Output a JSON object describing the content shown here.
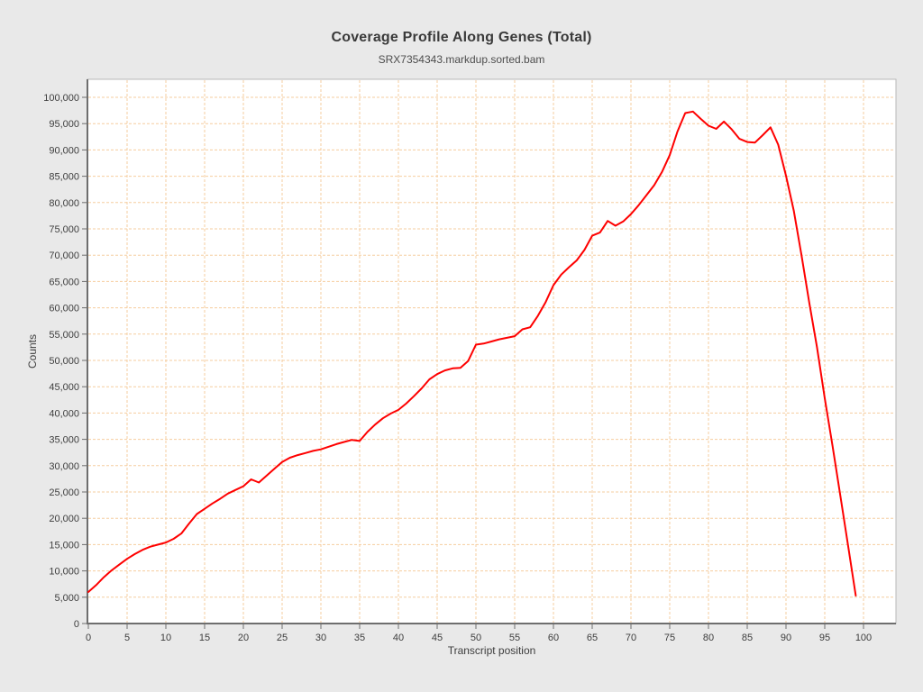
{
  "title": "Coverage Profile Along Genes (Total)",
  "subtitle": "SRX7354343.markdup.sorted.bam",
  "chart_data": {
    "type": "line",
    "title": "Coverage Profile Along Genes (Total)",
    "subtitle": "SRX7354343.markdup.sorted.bam",
    "xlabel": "Transcript position",
    "ylabel": "Counts",
    "xlim": [
      0,
      100
    ],
    "ylim": [
      0,
      103500
    ],
    "x_tick_step": 5,
    "y_tick_step": 5000,
    "grid": "dashed",
    "legend": "none",
    "x_tick_labels": [
      "0",
      "5",
      "10",
      "15",
      "20",
      "25",
      "30",
      "35",
      "40",
      "45",
      "50",
      "55",
      "60",
      "65",
      "70",
      "75",
      "80",
      "85",
      "90",
      "95",
      "100"
    ],
    "y_tick_labels": [
      "0",
      "5,000",
      "10,000",
      "15,000",
      "20,000",
      "25,000",
      "30,000",
      "35,000",
      "40,000",
      "45,000",
      "50,000",
      "55,000",
      "60,000",
      "65,000",
      "70,000",
      "75,000",
      "80,000",
      "85,000",
      "90,000",
      "95,000",
      "100,000"
    ],
    "series": [
      {
        "name": "SRX7354343.markdup.sorted.bam",
        "color": "#fe0000",
        "x_start": 0,
        "x_step": 1,
        "values": [
          6000,
          7300,
          8800,
          10100,
          11200,
          12300,
          13200,
          14000,
          14600,
          15000,
          15400,
          16100,
          17100,
          19000,
          20800,
          21800,
          22800,
          23700,
          24700,
          25400,
          26100,
          27400,
          26800,
          28100,
          29400,
          30700,
          31500,
          32000,
          32400,
          32800,
          33100,
          33600,
          34100,
          34500,
          34900,
          34700,
          36400,
          37800,
          39000,
          39900,
          40600,
          41800,
          43200,
          44700,
          46400,
          47400,
          48100,
          48500,
          48600,
          49900,
          53000,
          53200,
          53600,
          54000,
          54300,
          54600,
          55900,
          56300,
          58500,
          61100,
          64300,
          66300,
          67700,
          69000,
          71000,
          73700,
          74300,
          76500,
          75600,
          76400,
          77800,
          79500,
          81400,
          83300,
          85800,
          89000,
          93500,
          97000,
          97300,
          95900,
          94600,
          94000,
          95400,
          93900,
          92100,
          91500,
          91400,
          92800,
          94300,
          91000,
          85100,
          78500,
          70000,
          61000,
          52500,
          42800,
          33800,
          24400,
          14900,
          5300
        ]
      }
    ]
  },
  "style": {
    "page_background": "#e9e9e9",
    "plot_background": "#ffffff",
    "grid_color": "#f6cd9f",
    "axis_color": "#6e6e6e",
    "frame_color": "#b8b8b8",
    "tick_label_color": "#3d3d3d",
    "line_color": "#fe0000"
  }
}
